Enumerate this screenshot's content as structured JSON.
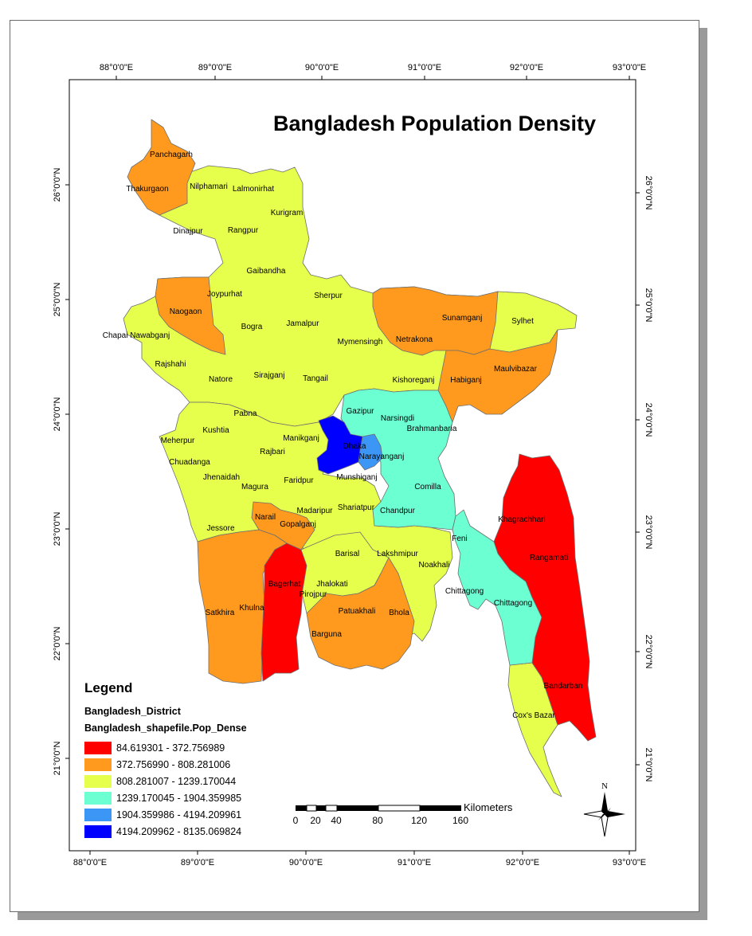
{
  "title": "Bangladesh Population Density",
  "grid": {
    "lon_labels": [
      "88°0'0\"E",
      "89°0'0\"E",
      "90°0'0\"E",
      "91°0'0\"E",
      "92°0'0\"E",
      "93°0'0\"E"
    ],
    "lat_labels": [
      "26°0'0\"N",
      "25°0'0\"N",
      "24°0'0\"N",
      "23°0'0\"N",
      "22°0'0\"N",
      "21°0'0\"N"
    ]
  },
  "legend": {
    "title": "Legend",
    "layer": "Bangladesh_District",
    "field": "Bangladesh_shapefile.Pop_Dense",
    "classes": [
      {
        "label": "84.619301 - 372.756989",
        "color": "#ff0000"
      },
      {
        "label": "372.756990 - 808.281006",
        "color": "#ff9a1e"
      },
      {
        "label": "808.281007 - 1239.170044",
        "color": "#e6ff4c"
      },
      {
        "label": "1239.170045 - 1904.359985",
        "color": "#6cffd2"
      },
      {
        "label": "1904.359986 - 4194.209961",
        "color": "#3c96f5"
      },
      {
        "label": "4194.209962 - 8135.069824",
        "color": "#0000ff"
      }
    ]
  },
  "scalebar": {
    "unit": "Kilometers",
    "ticks": [
      "0",
      "20",
      "40",
      "80",
      "120",
      "160"
    ]
  },
  "north_arrow": {
    "label": "N",
    "icon": "north-arrow-icon"
  },
  "districts": [
    {
      "name": "Panchagarh"
    },
    {
      "name": "Thakurgaon"
    },
    {
      "name": "Nilphamari"
    },
    {
      "name": "Lalmonirhat"
    },
    {
      "name": "Kurigram"
    },
    {
      "name": "Dinajpur"
    },
    {
      "name": "Rangpur"
    },
    {
      "name": "Gaibandha"
    },
    {
      "name": "Joypurhat"
    },
    {
      "name": "Naogaon"
    },
    {
      "name": "Chapai Nawabganj"
    },
    {
      "name": "Bogra"
    },
    {
      "name": "Jamalpur"
    },
    {
      "name": "Sherpur"
    },
    {
      "name": "Netrakona"
    },
    {
      "name": "Sunamganj"
    },
    {
      "name": "Sylhet"
    },
    {
      "name": "Mymensingh"
    },
    {
      "name": "Rajshahi"
    },
    {
      "name": "Natore"
    },
    {
      "name": "Sirajganj"
    },
    {
      "name": "Tangail"
    },
    {
      "name": "Kishoreganj"
    },
    {
      "name": "Habiganj"
    },
    {
      "name": "Maulvibazar"
    },
    {
      "name": "Gazipur"
    },
    {
      "name": "Narsingdi"
    },
    {
      "name": "Brahmanbaria"
    },
    {
      "name": "Pabna"
    },
    {
      "name": "Kushtia"
    },
    {
      "name": "Manikganj"
    },
    {
      "name": "Dhaka"
    },
    {
      "name": "Narayanganj"
    },
    {
      "name": "Meherpur"
    },
    {
      "name": "Chuadanga"
    },
    {
      "name": "Rajbari"
    },
    {
      "name": "Munshiganj"
    },
    {
      "name": "Jhenaidah"
    },
    {
      "name": "Magura"
    },
    {
      "name": "Faridpur"
    },
    {
      "name": "Comilla"
    },
    {
      "name": "Shariatpur"
    },
    {
      "name": "Chandpur"
    },
    {
      "name": "Madaripur"
    },
    {
      "name": "Narail"
    },
    {
      "name": "Gopalganj"
    },
    {
      "name": "Khagrachhari"
    },
    {
      "name": "Jessore"
    },
    {
      "name": "Feni"
    },
    {
      "name": "Barisal"
    },
    {
      "name": "Lakshmipur"
    },
    {
      "name": "Noakhali"
    },
    {
      "name": "Rangamati"
    },
    {
      "name": "Bagerhat"
    },
    {
      "name": "Jhalokati"
    },
    {
      "name": "Pirojpur"
    },
    {
      "name": "Chittagong"
    },
    {
      "name": "Chittagong"
    },
    {
      "name": "Satkhira"
    },
    {
      "name": "Khulna"
    },
    {
      "name": "Patuakhali"
    },
    {
      "name": "Bhola"
    },
    {
      "name": "Barguna"
    },
    {
      "name": "Bandarban"
    },
    {
      "name": "Cox's Bazar"
    }
  ]
}
